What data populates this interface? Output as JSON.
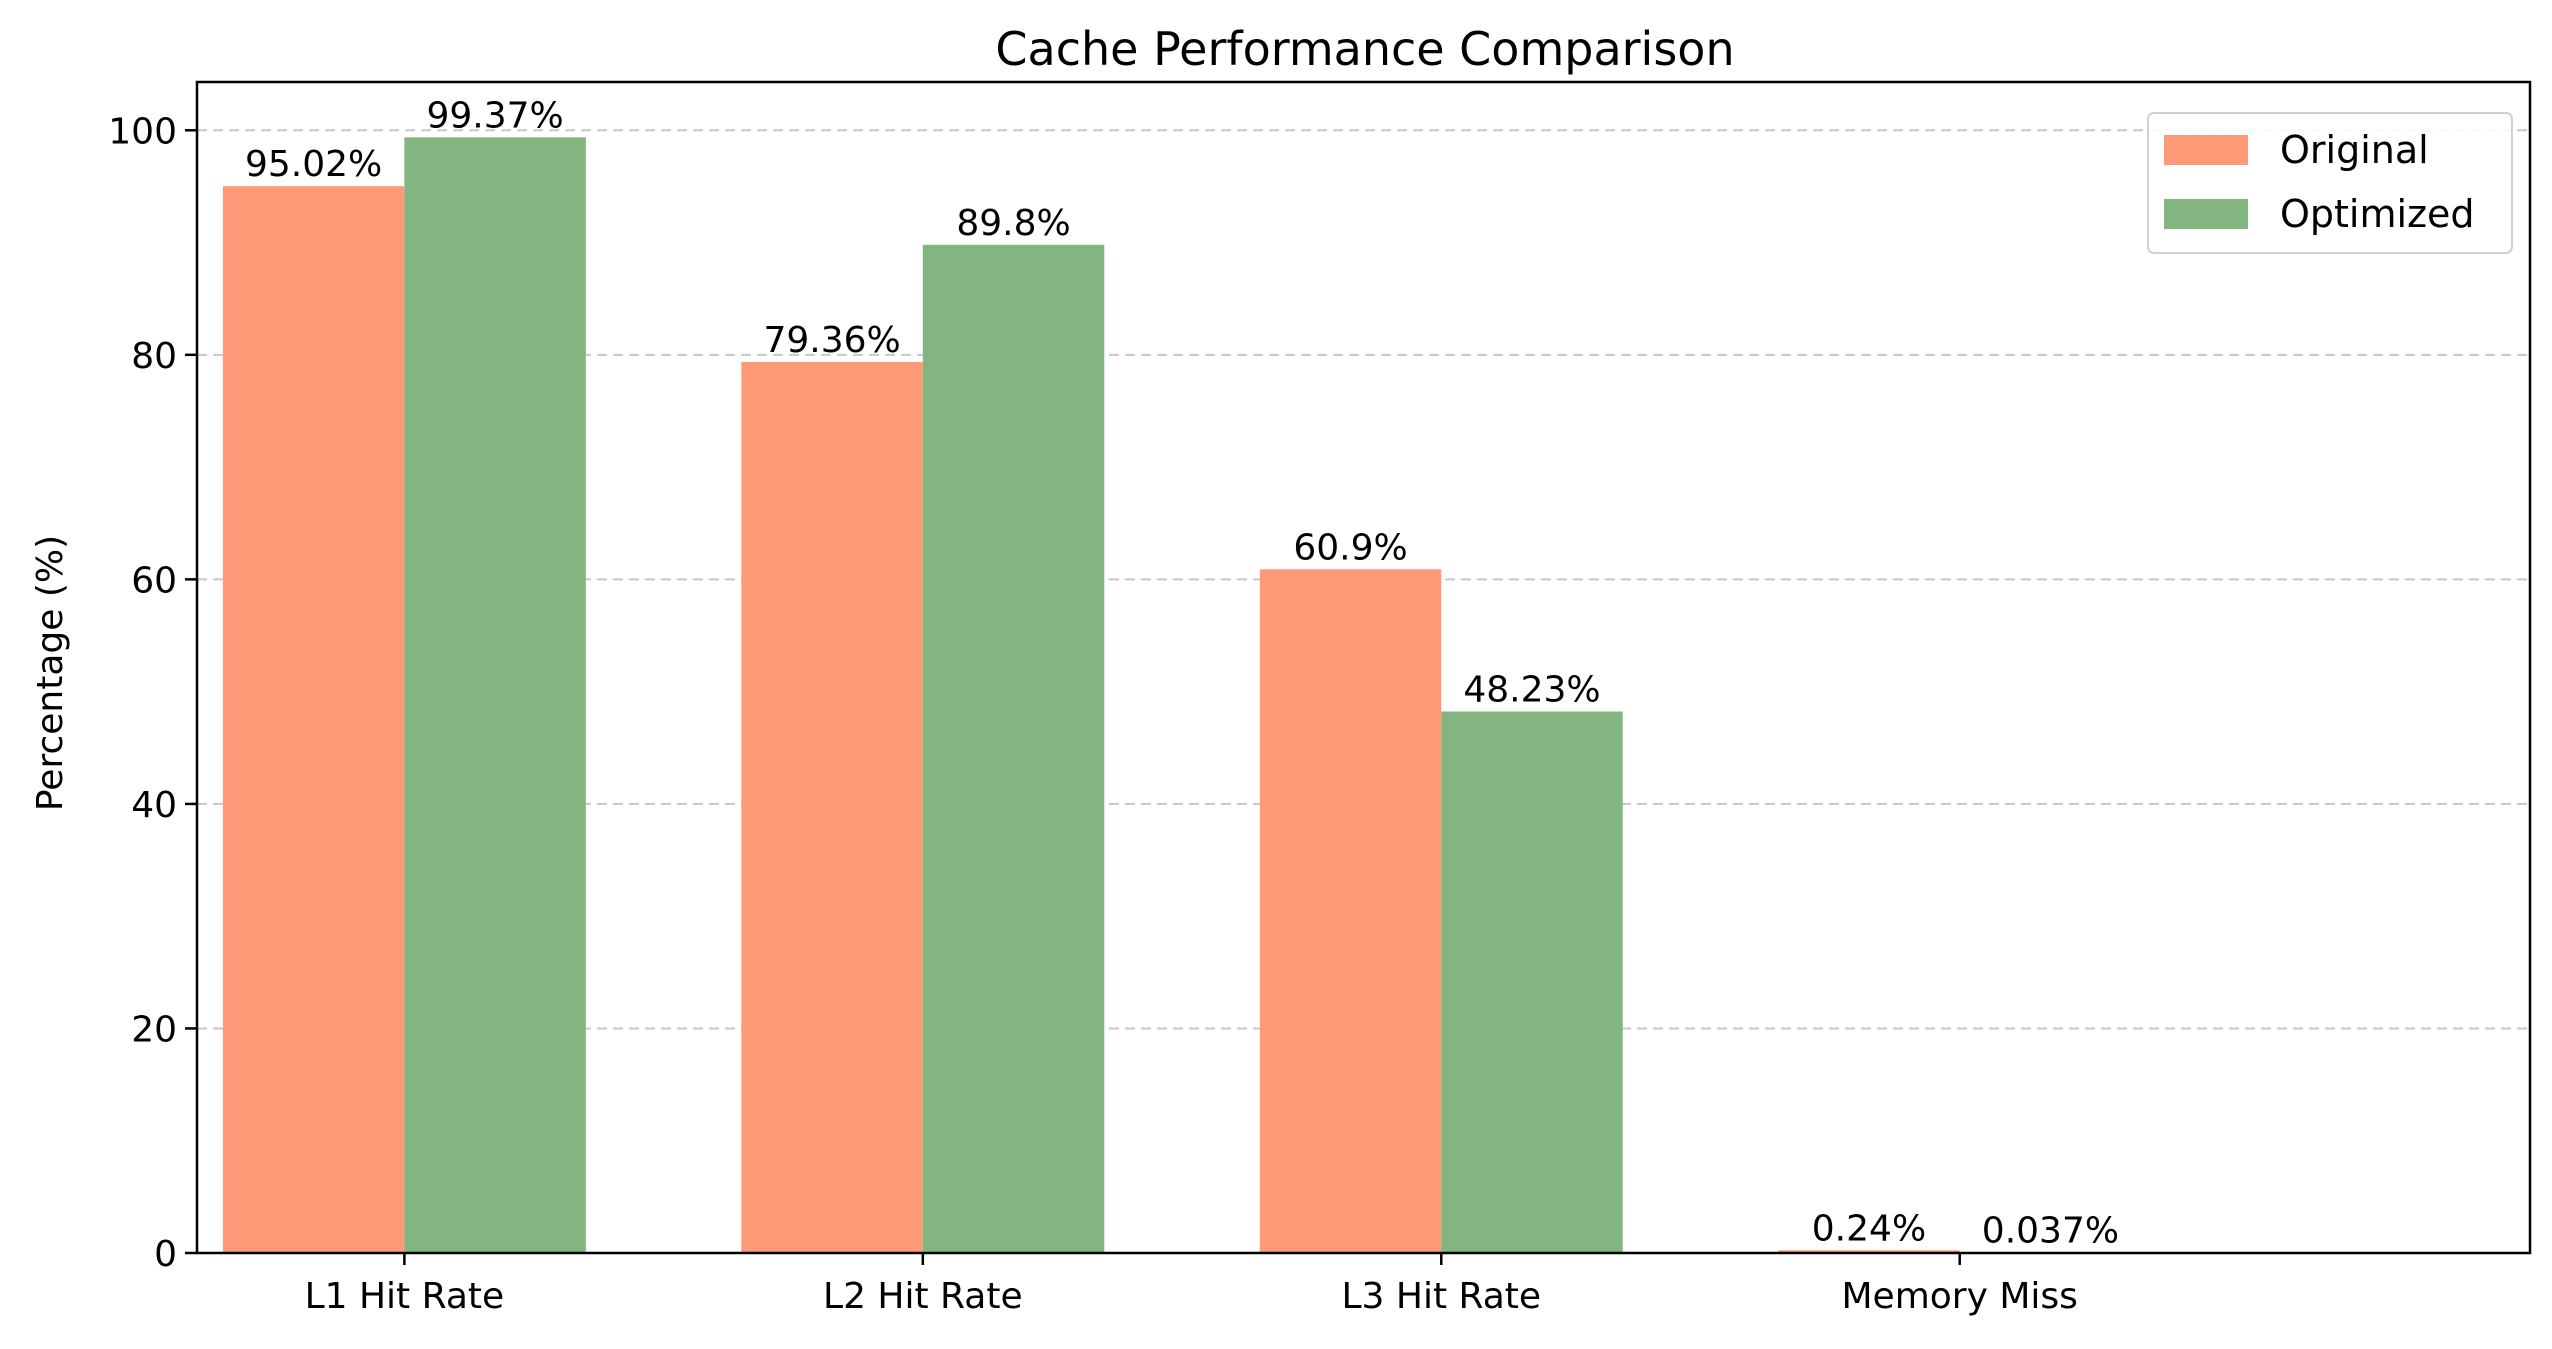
{
  "chart_data": {
    "type": "bar",
    "title": "Cache Performance Comparison",
    "xlabel": "",
    "ylabel": "Percentage (%)",
    "categories": [
      "L1 Hit Rate",
      "L2 Hit Rate",
      "L3 Hit Rate",
      "Memory Miss"
    ],
    "series": [
      {
        "name": "Original",
        "color": "#FF9A78",
        "values": [
          95.02,
          79.36,
          60.9,
          0.24
        ],
        "labels": [
          "95.02%",
          "79.36%",
          "60.9%",
          "0.24%"
        ]
      },
      {
        "name": "Optimized",
        "color": "#82B57F",
        "values": [
          99.37,
          89.8,
          48.23,
          0.037
        ],
        "labels": [
          "99.37%",
          "89.8%",
          "48.23%",
          "0.037%"
        ]
      }
    ],
    "ylim": [
      0,
      104.3
    ],
    "yticks": [
      0,
      20,
      40,
      60,
      80,
      100
    ],
    "ytick_labels": [
      "0",
      "20",
      "40",
      "60",
      "80",
      "100"
    ],
    "grid": "y-dashed",
    "legend_position": "top-right"
  }
}
